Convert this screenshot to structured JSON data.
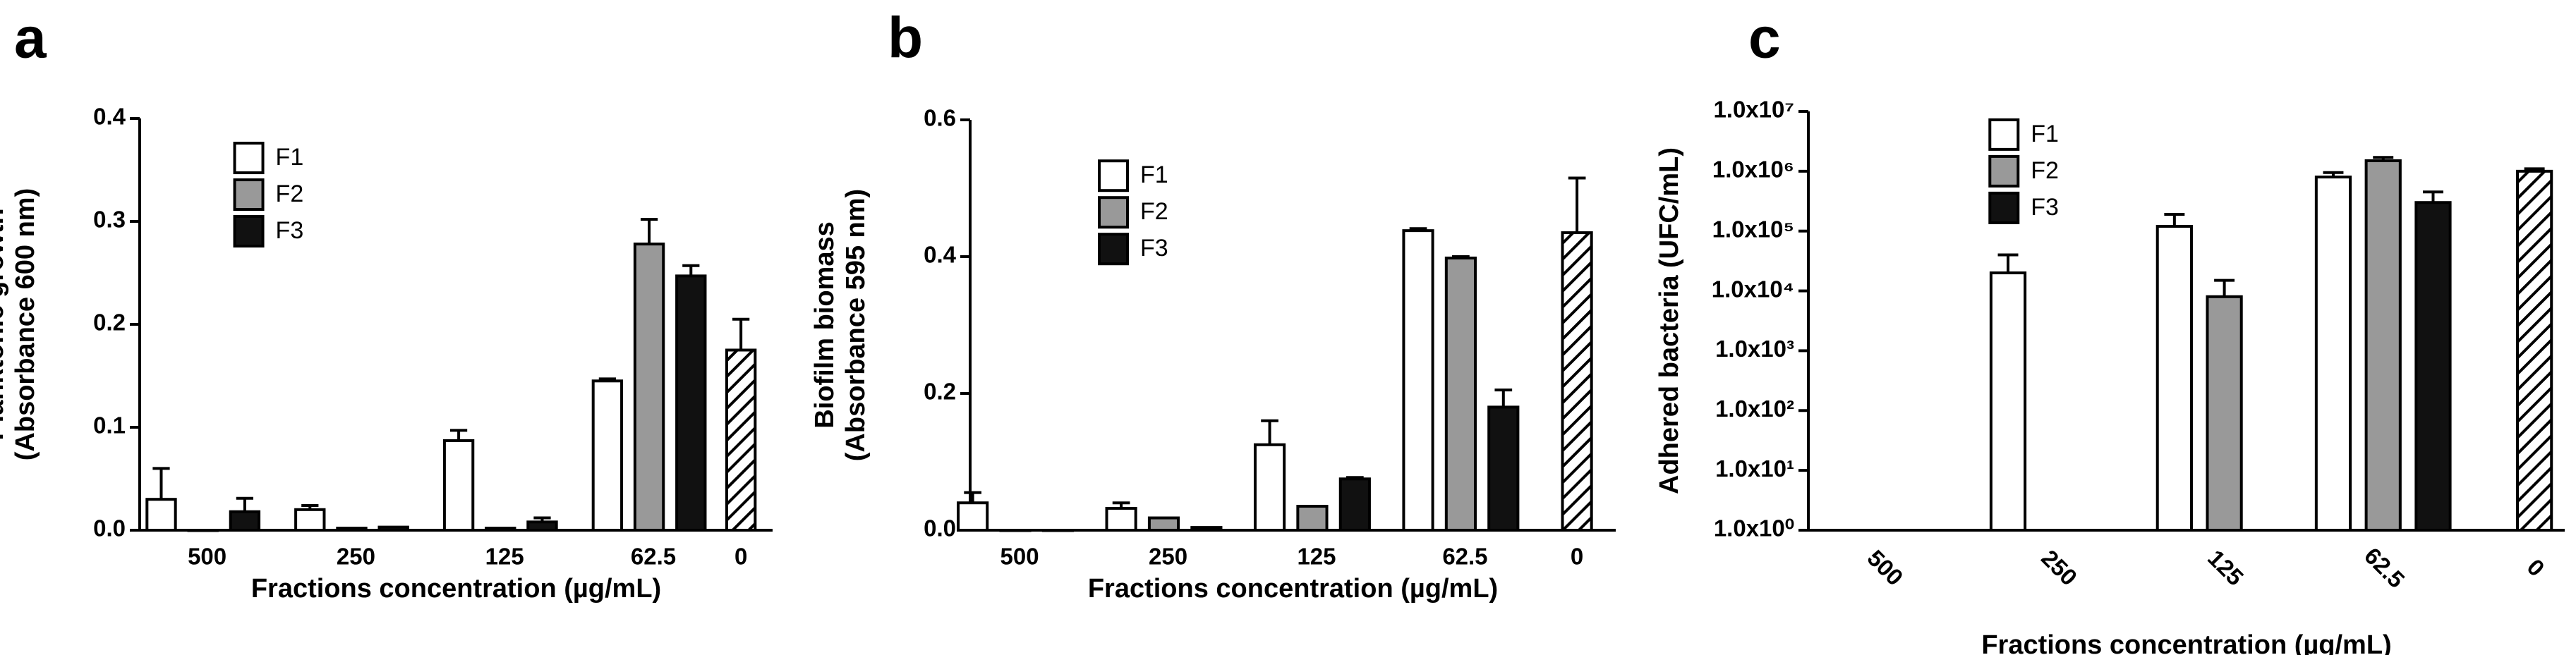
{
  "chart_data": [
    {
      "type": "bar",
      "label": "a",
      "ylabel": [
        "Planktonic growth",
        "(Absorbance 600 nm)"
      ],
      "xlabel": "Fractions concentration (µg/mL)",
      "categories": [
        "500",
        "250",
        "125",
        "62.5"
      ],
      "series": [
        {
          "name": "F1",
          "color": "#ffffff",
          "values": [
            0.03,
            0.02,
            0.087,
            0.145
          ],
          "errors": [
            0.03,
            0.004,
            0.01,
            0.002
          ]
        },
        {
          "name": "F2",
          "color": "#999999",
          "values": [
            0,
            0.002,
            0.002,
            0.278
          ],
          "errors": [
            0,
            0,
            0,
            0.024
          ]
        },
        {
          "name": "F3",
          "color": "#111111",
          "values": [
            0.018,
            0.003,
            0.008,
            0.247
          ],
          "errors": [
            0.013,
            0,
            0.004,
            0.01
          ]
        }
      ],
      "control": {
        "label": "0",
        "value": 0.175,
        "error": 0.03,
        "pattern": "hatch"
      },
      "ylim": [
        0,
        0.4
      ],
      "yticks": [
        {
          "value": 0,
          "label": "0.0"
        },
        0.1,
        0.2,
        0.3,
        0.4
      ],
      "legend": "upper left"
    },
    {
      "type": "bar",
      "label": "b",
      "ylabel": [
        "Biofilm biomass",
        "(Absorbance 595 nm)"
      ],
      "xlabel": "Fractions concentration (µg/mL)",
      "categories": [
        "500",
        "250",
        "125",
        "62.5"
      ],
      "series": [
        {
          "name": "F1",
          "color": "#ffffff",
          "values": [
            0.04,
            0.032,
            0.125,
            0.438
          ],
          "errors": [
            0.015,
            0.008,
            0.035,
            0.003
          ]
        },
        {
          "name": "F2",
          "color": "#999999",
          "values": [
            0,
            0.018,
            0.035,
            0.398
          ],
          "errors": [
            0,
            0,
            0,
            0.002
          ]
        },
        {
          "name": "F3",
          "color": "#111111",
          "values": [
            0,
            0.004,
            0.075,
            0.18
          ],
          "errors": [
            0,
            0,
            0.002,
            0.025
          ]
        }
      ],
      "control": {
        "label": "0",
        "value": 0.435,
        "error": 0.08,
        "pattern": "hatch"
      },
      "ylim": [
        0,
        0.6
      ],
      "yticks": [
        {
          "value": 0,
          "label": "0.0"
        },
        0.2,
        0.4,
        0.6
      ],
      "legend": "upper left"
    },
    {
      "type": "bar",
      "label": "c",
      "log_scale": true,
      "xtick_rotation": 45,
      "ylabel": [
        "Adhered bacteria (UFC/mL)"
      ],
      "xlabel": "Fractions concentration (µg/mL)",
      "categories": [
        "500",
        "250",
        "125",
        "62.5"
      ],
      "series": [
        {
          "name": "F1",
          "color": "#ffffff",
          "values": [
            null,
            20000,
            120000,
            800000
          ],
          "errors": [
            null,
            20000,
            70000,
            150000
          ]
        },
        {
          "name": "F2",
          "color": "#999999",
          "values": [
            null,
            null,
            8000,
            1500000
          ],
          "errors": [
            null,
            null,
            7000,
            200000
          ]
        },
        {
          "name": "F3",
          "color": "#111111",
          "values": [
            null,
            null,
            null,
            300000
          ],
          "errors": [
            null,
            null,
            null,
            150000
          ]
        }
      ],
      "control": {
        "label": "0",
        "value": 1000000,
        "error": 100000,
        "pattern": "hatch"
      },
      "ylim": [
        1,
        10000000
      ],
      "yticks": [
        {
          "value": 1,
          "label": "1.0x10⁰"
        },
        {
          "value": 10,
          "label": "1.0x10¹"
        },
        {
          "value": 100,
          "label": "1.0x10²"
        },
        {
          "value": 1000,
          "label": "1.0x10³"
        },
        {
          "value": 10000,
          "label": "1.0x10⁴"
        },
        {
          "value": 100000,
          "label": "1.0x10⁵"
        },
        {
          "value": 1000000,
          "label": "1.0x10⁶"
        },
        {
          "value": 10000000,
          "label": "1.0x10⁷"
        }
      ],
      "legend": "upper left"
    }
  ]
}
